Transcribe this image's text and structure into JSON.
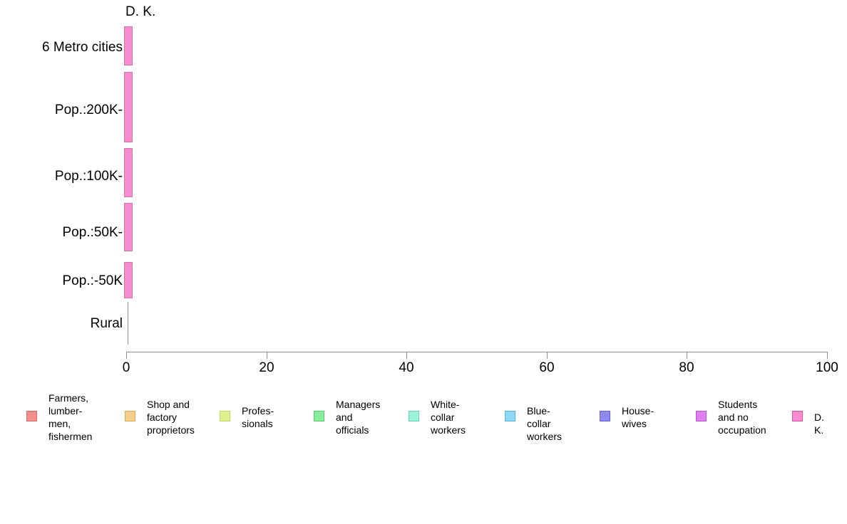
{
  "page": {
    "background": "#ffffff"
  },
  "chart_data": {
    "type": "bar",
    "orientation": "horizontal",
    "top_label": "D. K.",
    "categories": [
      "6 Metro cities",
      "Pop.:200K-",
      "Pop.:100K-",
      "Pop.:50K-",
      "Pop.:-50K",
      "Rural"
    ],
    "series": [
      {
        "name": "Farmers, lumbermen, fishermen",
        "color": "#F28E8E",
        "values": [
          0,
          0,
          0,
          0,
          0,
          0
        ]
      },
      {
        "name": "Shop and factory proprietors",
        "color": "#F5CF8C",
        "values": [
          0,
          0,
          0,
          0,
          0,
          0
        ]
      },
      {
        "name": "Professionals",
        "color": "#DDF28F",
        "values": [
          0,
          0,
          0,
          0,
          0,
          0
        ]
      },
      {
        "name": "Managers and officials",
        "color": "#8BEC9B",
        "values": [
          0,
          0,
          0,
          0,
          0,
          0
        ]
      },
      {
        "name": "White-collar workers",
        "color": "#9BF2D9",
        "values": [
          0,
          0,
          0,
          0,
          0,
          0
        ]
      },
      {
        "name": "Blue-collar workers",
        "color": "#8ED7F7",
        "values": [
          0,
          0,
          0,
          0,
          0,
          0
        ]
      },
      {
        "name": "Housewives",
        "color": "#8F8BEE",
        "values": [
          0,
          0,
          0,
          0,
          0,
          0
        ]
      },
      {
        "name": "Students and no occupation",
        "color": "#DF80F0",
        "values": [
          0,
          0,
          0,
          0,
          0,
          0
        ]
      },
      {
        "name": "D. K.",
        "color": "#F98CD1",
        "values": [
          1,
          1,
          1,
          1,
          1,
          0
        ]
      }
    ],
    "bar_value_labels": [
      "1",
      "1",
      "1",
      "1",
      "",
      ""
    ],
    "xlim": [
      0,
      100
    ],
    "x_ticks": [
      "0",
      "20",
      "40",
      "60",
      "80",
      "100"
    ],
    "grid": false,
    "legend_position": "bottom",
    "axis_color": "#8f8f8f"
  },
  "legend": {
    "items": [
      {
        "label": "Farmers,\nlumber-\nmen,\nfishermen",
        "color": "#F28E8E"
      },
      {
        "label": "Shop and\nfactory\nproprietors",
        "color": "#F5CF8C"
      },
      {
        "label": "Profes-\nsionals",
        "color": "#DDF28F"
      },
      {
        "label": "Managers\nand\nofficials",
        "color": "#8BEC9B"
      },
      {
        "label": "White-\ncollar\nworkers",
        "color": "#9BF2D9"
      },
      {
        "label": "Blue-collar\nworkers",
        "color": "#8ED7F7"
      },
      {
        "label": "House-\nwives",
        "color": "#8F8BEE"
      },
      {
        "label": "Students\nand no\noccupation",
        "color": "#DF80F0"
      },
      {
        "label": "D. K.",
        "color": "#F98CD1"
      }
    ]
  }
}
